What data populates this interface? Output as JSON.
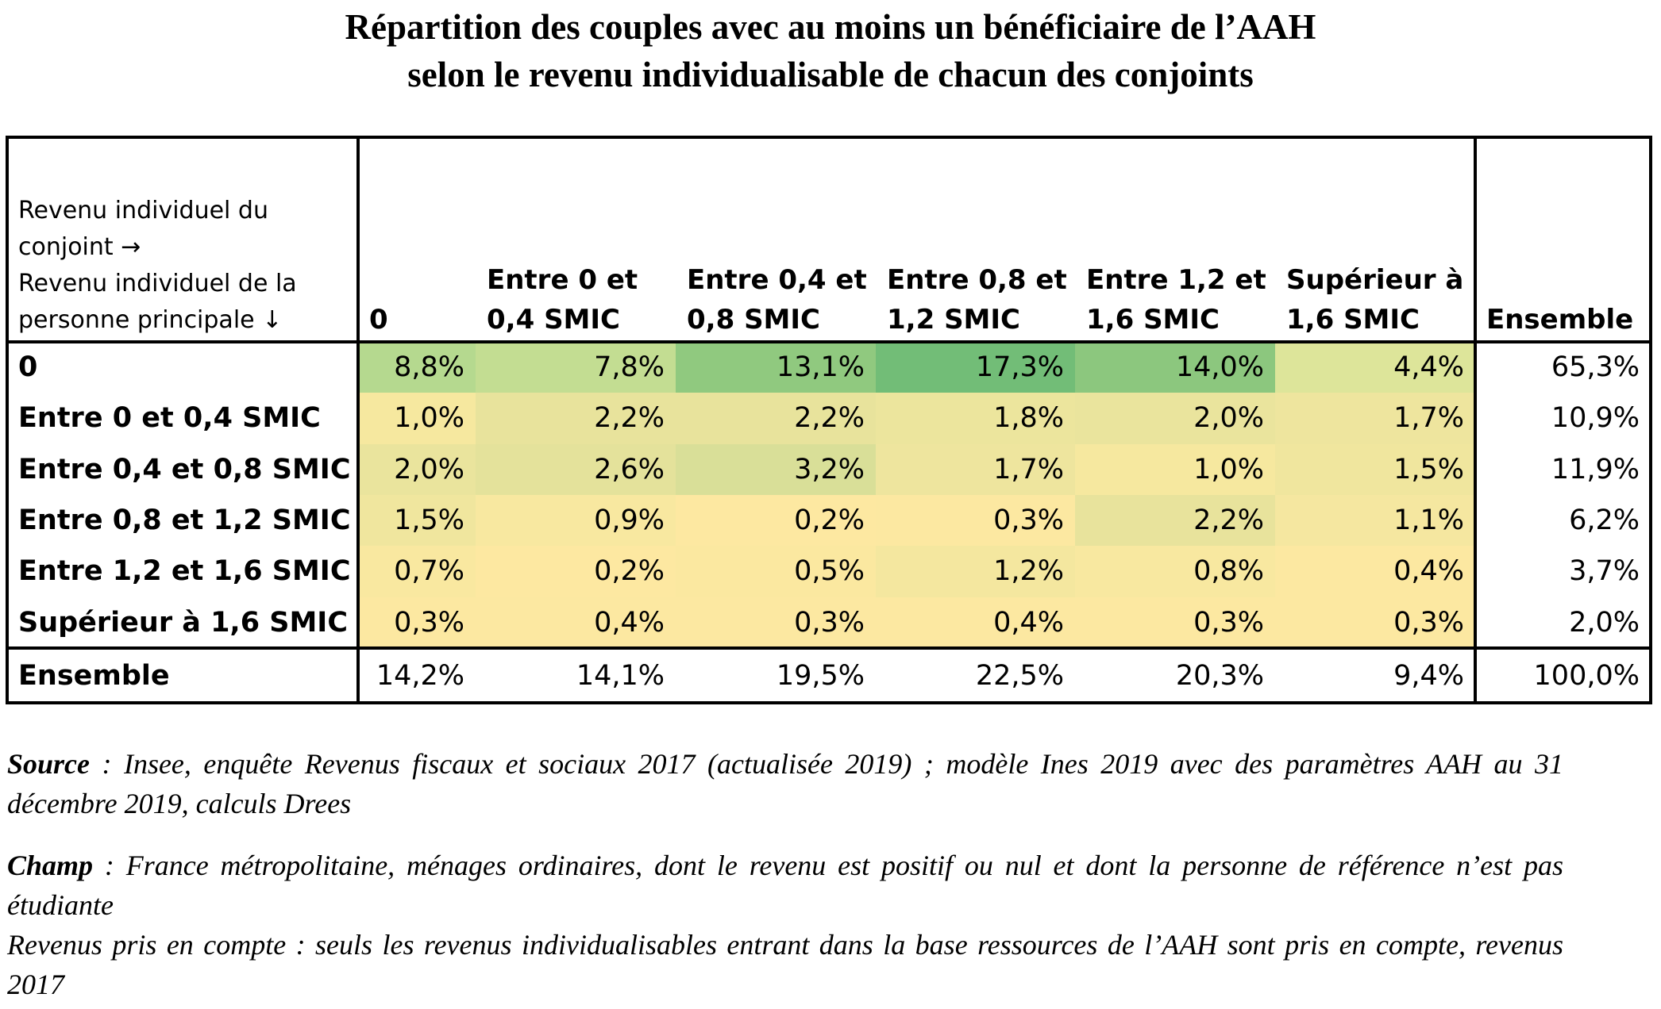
{
  "title": [
    "Répartition des couples avec au moins un bénéficiaire de l’AAH",
    "selon le revenu individualisable de chacun des conjoints"
  ],
  "table": {
    "corner": [
      "Revenu individuel du",
      "conjoint →",
      "Revenu individuel de la",
      "personne principale ↓"
    ],
    "columns": [
      [
        "0"
      ],
      [
        "Entre 0 et",
        "0,4 SMIC"
      ],
      [
        "Entre 0,4 et",
        "0,8 SMIC"
      ],
      [
        "Entre 0,8 et",
        "1,2 SMIC"
      ],
      [
        "Entre 1,2 et",
        "1,6 SMIC"
      ],
      [
        "Supérieur à",
        "1,6 SMIC"
      ],
      [
        "Ensemble"
      ]
    ],
    "rows": [
      {
        "label": "0",
        "cells": [
          "8,8%",
          "7,8%",
          "13,1%",
          "17,3%",
          "14,0%",
          "4,4%",
          "65,3%"
        ],
        "colors": [
          "#b5d98f",
          "#c3dd92",
          "#90c97f",
          "#72bd77",
          "#8cc77e",
          "#dde59a"
        ]
      },
      {
        "label": "Entre 0 et 0,4 SMIC",
        "cells": [
          "1,0%",
          "2,2%",
          "2,2%",
          "1,8%",
          "2,0%",
          "1,7%",
          "10,9%"
        ],
        "colors": [
          "#f6e89f",
          "#e8e39c",
          "#e8e39c",
          "#ece59d",
          "#eae49d",
          "#eee59e"
        ]
      },
      {
        "label": "Entre 0,4 et 0,8 SMIC",
        "cells": [
          "2,0%",
          "2,6%",
          "3,2%",
          "1,7%",
          "1,0%",
          "1,5%",
          "11,9%"
        ],
        "colors": [
          "#eae49d",
          "#e4e29b",
          "#d9df98",
          "#eee59e",
          "#f6e89f",
          "#f0e69e"
        ]
      },
      {
        "label": "Entre 0,8 et 1,2 SMIC",
        "cells": [
          "1,5%",
          "0,9%",
          "0,2%",
          "0,3%",
          "2,2%",
          "1,1%",
          "6,2%"
        ],
        "colors": [
          "#f0e69e",
          "#f8e8a0",
          "#fde8a1",
          "#fce8a1",
          "#e8e39c",
          "#f5e7a0"
        ]
      },
      {
        "label": "Entre 1,2 et 1,6 SMIC",
        "cells": [
          "0,7%",
          "0,2%",
          "0,5%",
          "1,2%",
          "0,8%",
          "0,4%",
          "3,7%"
        ],
        "colors": [
          "#f9e8a0",
          "#fde8a1",
          "#fbe8a0",
          "#f4e79f",
          "#f8e8a0",
          "#fce8a1"
        ]
      },
      {
        "label": "Supérieur à 1,6 SMIC",
        "cells": [
          "0,3%",
          "0,4%",
          "0,3%",
          "0,4%",
          "0,3%",
          "0,3%",
          "2,0%"
        ],
        "colors": [
          "#fce8a1",
          "#fce8a1",
          "#fce8a1",
          "#fce8a1",
          "#fce8a1",
          "#fce8a1"
        ]
      }
    ],
    "total": {
      "label": "Ensemble",
      "cells": [
        "14,2%",
        "14,1%",
        "19,5%",
        "22,5%",
        "20,3%",
        "9,4%",
        "100,0%"
      ]
    }
  },
  "notes": {
    "source": {
      "label": "Source",
      "text": " : Insee, enquête Revenus fiscaux et sociaux 2017 (actualisée 2019) ; modèle Ines 2019 avec des paramètres AAH au 31 décembre 2019, calculs Drees"
    },
    "champ": {
      "label": "Champ",
      "text": " : France métropolitaine, ménages ordinaires, dont le revenu est positif ou nul et dont la personne de référence n’est pas étudiante"
    },
    "extra": "Revenus pris en compte : seuls les revenus individualisables entrant dans la base ressources de l’AAH sont pris en compte, revenus 2017"
  }
}
